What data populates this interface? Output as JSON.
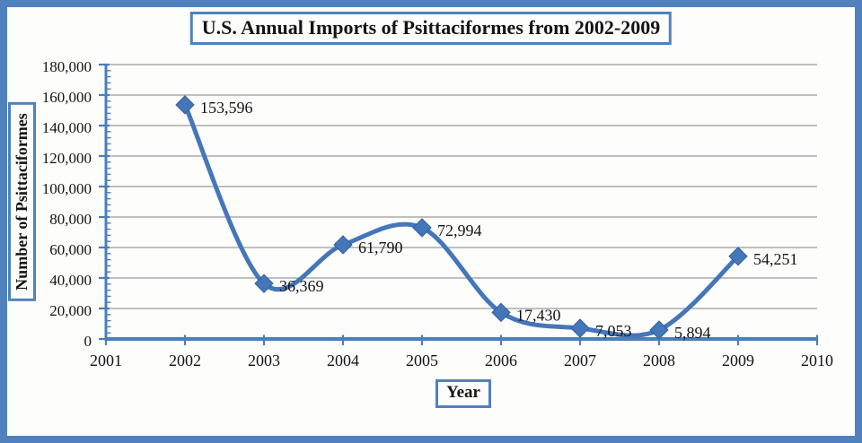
{
  "frame": {
    "border_color": "#4f81bd",
    "background": "#fdfdfc"
  },
  "chart_data": {
    "type": "line",
    "title": "U.S. Annual Imports of Psittaciformes from 2002-2009",
    "xlabel": "Year",
    "ylabel": "Number of Psittaciformes",
    "x": [
      2002,
      2003,
      2004,
      2005,
      2006,
      2007,
      2008,
      2009
    ],
    "values": [
      153596,
      36369,
      61790,
      72994,
      17430,
      7053,
      5894,
      54251
    ],
    "data_labels": [
      "153,596",
      "36,369",
      "61,790",
      "72,994",
      "17,430",
      "7,053",
      "5,894",
      "54,251"
    ],
    "xlim": [
      2001,
      2010
    ],
    "x_tick_labels": [
      "2001",
      "2002",
      "2003",
      "2004",
      "2005",
      "2006",
      "2007",
      "2008",
      "2009",
      "2010"
    ],
    "ylim": [
      0,
      180000
    ],
    "y_tick_step": 20000,
    "y_minor_step": 4000,
    "y_tick_labels": [
      "0",
      "20,000",
      "40,000",
      "60,000",
      "80,000",
      "100,000",
      "120,000",
      "140,000",
      "160,000",
      "180,000"
    ],
    "grid": "horizontal-major",
    "legend": "none",
    "smooth": true,
    "marker": "diamond",
    "line_color": "#4476b9",
    "marker_stroke_color": "#30609e",
    "axis_color": "#4a7ebc",
    "gridline_color": "#9a9a9a",
    "text_color": "#141414"
  }
}
